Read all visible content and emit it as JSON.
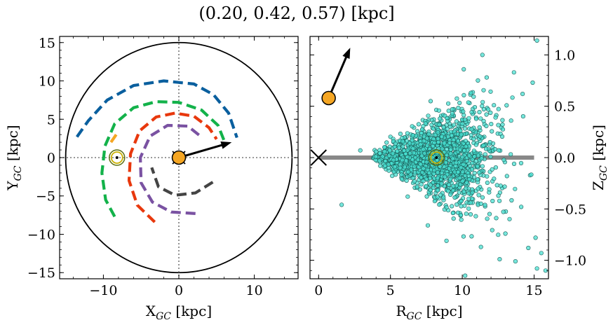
{
  "title": "(0.20, 0.42, 0.57) [kpc]",
  "chart_data": [
    {
      "type": "scatter",
      "panel": "left",
      "xlabel": {
        "main": "X",
        "sub": "GC",
        "unit": " [kpc]"
      },
      "ylabel": {
        "main": "Y",
        "sub": "GC",
        "unit": " [kpc]"
      },
      "xlim": [
        -15.8,
        15.8
      ],
      "ylim": [
        -15.8,
        15.8
      ],
      "xticks": [
        -10,
        0,
        10
      ],
      "xtick_labels": [
        "−10",
        "0",
        "10"
      ],
      "yticks": [
        -15,
        -10,
        -5,
        0,
        5,
        10,
        15
      ],
      "ytick_labels": [
        "−15",
        "−10",
        "−5",
        "0",
        "5",
        "10",
        "15"
      ],
      "boundary_circle_radius": 15,
      "sun_position": [
        0,
        0
      ],
      "sun_color": "#f5a623",
      "motion_arrow": {
        "from": [
          0,
          0
        ],
        "to": [
          7.0,
          2.0
        ]
      },
      "galactic_center": [
        -8.2,
        0
      ],
      "spiral_arms": [
        {
          "color": "#0a5f9e",
          "points": [
            [
              -13.5,
              2.7
            ],
            [
              -12,
              4.8
            ],
            [
              -9.5,
              7.5
            ],
            [
              -6,
              9.4
            ],
            [
              -2,
              10.0
            ],
            [
              2,
              9.6
            ],
            [
              4.6,
              8.2
            ],
            [
              6.6,
              5.8
            ],
            [
              7.7,
              2.6
            ]
          ]
        },
        {
          "color": "#13b24a",
          "points": [
            [
              -8.5,
              -7.7
            ],
            [
              -9.7,
              -5.5
            ],
            [
              -10.2,
              -2
            ],
            [
              -9.8,
              1.5
            ],
            [
              -8.5,
              4.4
            ],
            [
              -6,
              6.5
            ],
            [
              -3,
              7.3
            ],
            [
              0,
              7.2
            ],
            [
              3,
              6.2
            ],
            [
              5.2,
              4.2
            ],
            [
              6.0,
              2.2
            ]
          ]
        },
        {
          "color": "#f5a623",
          "points": [
            [
              -9.0,
              2.0
            ],
            [
              -8.3,
              3.0
            ]
          ]
        },
        {
          "color": "#e8380d",
          "points": [
            [
              -3.2,
              -8.4
            ],
            [
              -5.5,
              -6.2
            ],
            [
              -6.6,
              -3
            ],
            [
              -6.4,
              0.5
            ],
            [
              -5.2,
              3.5
            ],
            [
              -3,
              5.3
            ],
            [
              -0.5,
              5.8
            ],
            [
              2,
              5.4
            ],
            [
              4,
              3.9
            ],
            [
              5.0,
              2.4
            ]
          ]
        },
        {
          "color": "#7a52a2",
          "points": [
            [
              2.2,
              -7.3
            ],
            [
              -1,
              -7.1
            ],
            [
              -3.5,
              -5.8
            ],
            [
              -5.0,
              -3.3
            ],
            [
              -5.1,
              0
            ],
            [
              -3.8,
              2.8
            ],
            [
              -1.5,
              4.2
            ],
            [
              1.2,
              4.1
            ],
            [
              3.1,
              2.6
            ]
          ]
        },
        {
          "color": "#444444",
          "points": [
            [
              4.5,
              -3.2
            ],
            [
              2.2,
              -4.6
            ],
            [
              -0.5,
              -4.9
            ],
            [
              -2.7,
              -3.8
            ],
            [
              -3.6,
              -1.3
            ]
          ]
        }
      ]
    },
    {
      "type": "scatter",
      "panel": "right",
      "xlabel": {
        "main": "R",
        "sub": "GC",
        "unit": " [kpc]"
      },
      "ylabel": {
        "main": "Z",
        "sub": "GC",
        "unit": " [kpc]"
      },
      "xlim": [
        -0.6,
        16.0
      ],
      "ylim": [
        -1.18,
        1.18
      ],
      "xticks": [
        0,
        5,
        10,
        15
      ],
      "xtick_labels": [
        "0",
        "5",
        "10",
        "15"
      ],
      "yticks": [
        -1.0,
        -0.5,
        0.0,
        0.5,
        1.0
      ],
      "ytick_labels": [
        "−1.0",
        "−0.5",
        "0.0",
        "0.5",
        "1.0"
      ],
      "disk_line": {
        "x": [
          0,
          15.0
        ],
        "y": 0
      },
      "galactic_center": [
        0,
        0
      ],
      "sun_marker": [
        8.2,
        0
      ],
      "object_position": [
        0.7,
        0.58
      ],
      "object_color": "#f5a623",
      "motion_arrow": {
        "from": [
          0.7,
          0.58
        ],
        "to": [
          2.2,
          1.07
        ]
      },
      "scatter_color": "#48e0d2",
      "scatter_edge": "#1a5a55",
      "scatter_outliers": [
        [
          11.4,
          1.0
        ],
        [
          15.2,
          1.14
        ],
        [
          14.9,
          0.73
        ],
        [
          14.2,
          0.62
        ],
        [
          13.6,
          0.83
        ],
        [
          10.1,
          0.86
        ],
        [
          11.7,
          0.78
        ],
        [
          7.8,
          0.55
        ],
        [
          2.9,
          0.07
        ],
        [
          1.6,
          -0.46
        ],
        [
          7.6,
          -0.66
        ],
        [
          11.3,
          -0.87
        ],
        [
          11.9,
          -0.55
        ],
        [
          13.0,
          -0.74
        ],
        [
          14.6,
          -0.88
        ],
        [
          15.1,
          -0.78
        ],
        [
          15.5,
          -0.93
        ],
        [
          15.2,
          -1.08
        ],
        [
          15.8,
          -1.1
        ],
        [
          13.7,
          -1.01
        ],
        [
          12.6,
          -0.99
        ],
        [
          10.2,
          -1.15
        ],
        [
          8.9,
          -0.81
        ],
        [
          13.4,
          0.36
        ],
        [
          9.3,
          0.47
        ],
        [
          6.2,
          -0.38
        ],
        [
          14.1,
          -0.48
        ],
        [
          10.6,
          0.63
        ],
        [
          12.2,
          0.51
        ],
        [
          9.9,
          -0.56
        ]
      ]
    }
  ]
}
